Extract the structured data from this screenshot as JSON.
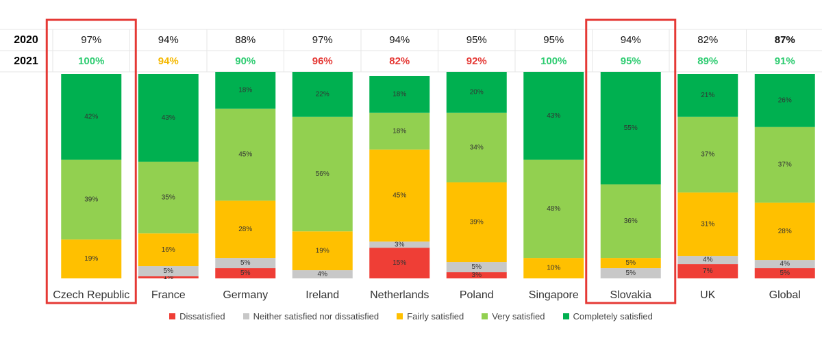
{
  "chart_data": {
    "type": "bar",
    "stacked": true,
    "categories": [
      "Czech Republic",
      "France",
      "Germany",
      "Ireland",
      "Netherlands",
      "Poland",
      "Singapore",
      "Slovakia",
      "UK",
      "Global"
    ],
    "row_labels": [
      "2020",
      "2021"
    ],
    "satisfaction_2020": [
      "97%",
      "94%",
      "88%",
      "97%",
      "94%",
      "95%",
      "95%",
      "94%",
      "82%",
      "87%"
    ],
    "satisfaction_2021": [
      "100%",
      "94%",
      "90%",
      "96%",
      "82%",
      "92%",
      "100%",
      "95%",
      "89%",
      "91%"
    ],
    "satisfaction_2021_colors": [
      "#2ecc71",
      "#f5b800",
      "#2ecc71",
      "#e53935",
      "#e53935",
      "#e53935",
      "#2ecc71",
      "#2ecc71",
      "#2ecc71",
      "#2ecc71"
    ],
    "highlighted": [
      "Czech Republic",
      "Slovakia"
    ],
    "highlight_color": "#e53935",
    "series": [
      {
        "name": "Dissatisfied",
        "color": "#ef3e36",
        "values": [
          0,
          1,
          5,
          0,
          15,
          3,
          0,
          0,
          7,
          5
        ],
        "labels": [
          "",
          "1%",
          "5%",
          "",
          "15%",
          "3%",
          "",
          "",
          "7%",
          "5%"
        ]
      },
      {
        "name": "Neither satisfied nor dissatisfied",
        "color": "#c8c8c8",
        "values": [
          0,
          5,
          5,
          4,
          3,
          5,
          0,
          5,
          4,
          4
        ],
        "labels": [
          "",
          "5%",
          "5%",
          "4%",
          "3%",
          "5%",
          "",
          "5%",
          "4%",
          "4%"
        ]
      },
      {
        "name": "Fairly satisfied",
        "color": "#ffc000",
        "values": [
          19,
          16,
          28,
          19,
          45,
          39,
          10,
          5,
          31,
          28
        ],
        "labels": [
          "19%",
          "16%",
          "28%",
          "19%",
          "45%",
          "39%",
          "10%",
          "5%",
          "31%",
          "28%"
        ]
      },
      {
        "name": "Very satisfied",
        "color": "#92d050",
        "values": [
          39,
          35,
          45,
          56,
          18,
          34,
          48,
          36,
          37,
          37
        ],
        "labels": [
          "39%",
          "35%",
          "45%",
          "56%",
          "18%",
          "34%",
          "48%",
          "36%",
          "37%",
          "37%"
        ]
      },
      {
        "name": "Completely satisfied",
        "color": "#00b050",
        "values": [
          42,
          43,
          18,
          22,
          18,
          20,
          43,
          55,
          21,
          26
        ],
        "labels": [
          "42%",
          "43%",
          "18%",
          "22%",
          "18%",
          "20%",
          "43%",
          "55%",
          "21%",
          "26%"
        ]
      }
    ],
    "ylim": [
      0,
      100
    ]
  }
}
